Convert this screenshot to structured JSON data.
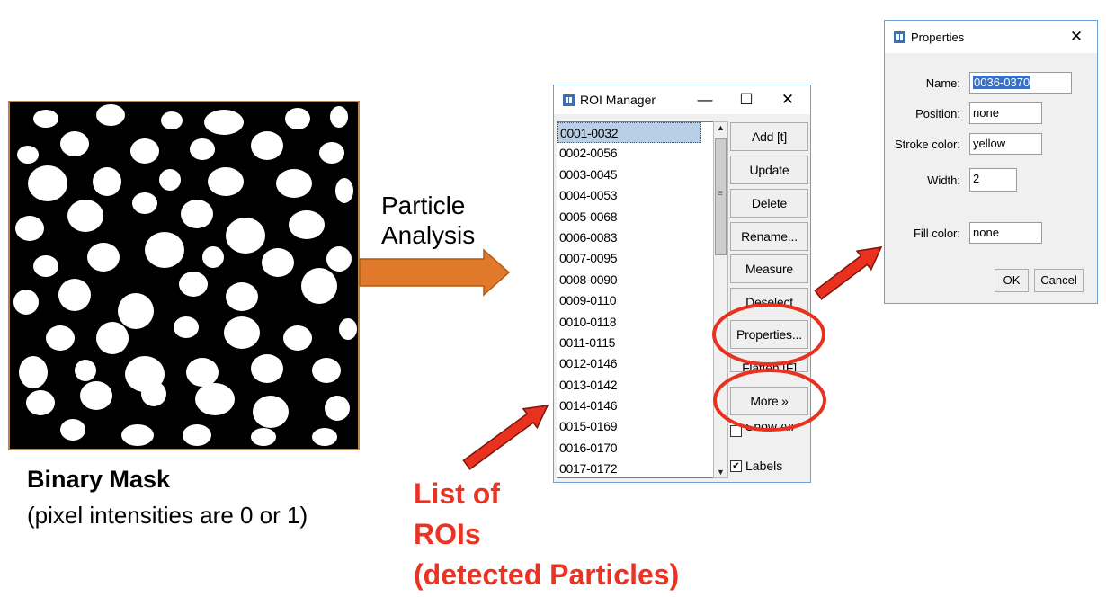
{
  "figure": {
    "mask_caption_bold": "Binary Mask",
    "mask_caption": "(pixel intensities are 0 or 1)",
    "flow_label_line1": "Particle",
    "flow_label_line2": "Analysis",
    "list_caption_line1": "List of",
    "list_caption_line2": "ROIs",
    "list_caption_line3": "(detected Particles)",
    "arrow_color_orange": "#e07a2a",
    "arrow_color_red": "#e8321f",
    "highlight_color": "#e8321f"
  },
  "roi_manager": {
    "title": "ROI Manager",
    "minimize_glyph": "—",
    "maximize_glyph": "☐",
    "close_glyph": "✕",
    "items": [
      "0001-0032",
      "0002-0056",
      "0003-0045",
      "0004-0053",
      "0005-0068",
      "0006-0083",
      "0007-0095",
      "0008-0090",
      "0009-0110",
      "0010-0118",
      "0011-0115",
      "0012-0146",
      "0013-0142",
      "0014-0146",
      "0015-0169",
      "0016-0170",
      "0017-0172"
    ],
    "selected_item": "0001-0032",
    "buttons": {
      "add": "Add [t]",
      "update": "Update",
      "delete": "Delete",
      "rename": "Rename...",
      "measure": "Measure",
      "deselect": "Deselect",
      "properties": "Properties...",
      "flatten": "Flatten [F]",
      "more": "More »"
    },
    "show_all_label": "Show All",
    "show_all_checked": false,
    "labels_label": "Labels",
    "labels_checked": true
  },
  "properties": {
    "title": "Properties",
    "close_glyph": "✕",
    "name_label": "Name:",
    "name_value": "0036-0370",
    "position_label": "Position:",
    "position_value": "none",
    "stroke_label": "Stroke color:",
    "stroke_value": "yellow",
    "width_label": "Width:",
    "width_value": "2",
    "fill_label": "Fill color:",
    "fill_value": "none",
    "ok_label": "OK",
    "cancel_label": "Cancel"
  }
}
